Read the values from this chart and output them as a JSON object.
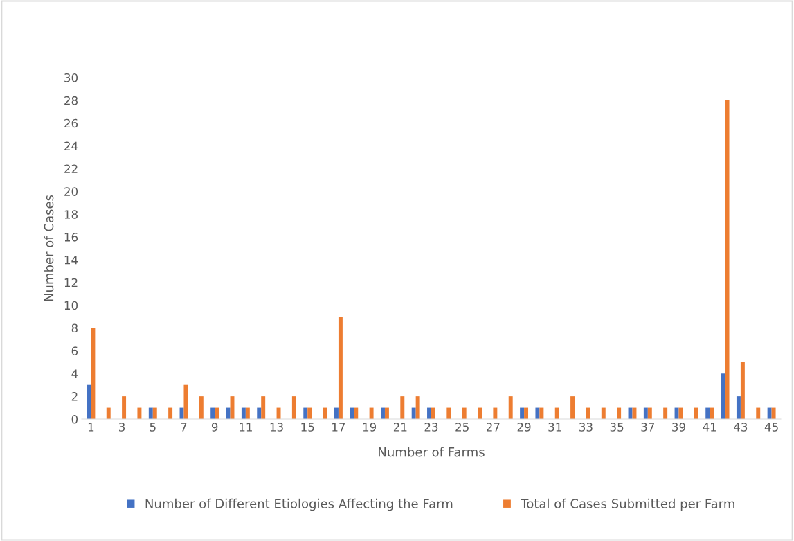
{
  "chart_data": {
    "type": "bar",
    "xlabel": "Number of Farms",
    "ylabel": "Number of Cases",
    "categories": [
      "1",
      null,
      "3",
      null,
      "5",
      null,
      "7",
      null,
      "9",
      null,
      "11",
      null,
      "13",
      null,
      "15",
      null,
      "17",
      null,
      "19",
      null,
      "21",
      null,
      "23",
      null,
      "25",
      null,
      "27",
      null,
      "29",
      null,
      "31",
      null,
      "33",
      null,
      "35",
      null,
      "37",
      null,
      "39",
      null,
      "41",
      null,
      "43",
      null,
      "45"
    ],
    "series": [
      {
        "name": "Number of Different Etiologies Affecting the Farm",
        "color": "#4472c4",
        "values": [
          3,
          null,
          null,
          null,
          1,
          null,
          1,
          null,
          1,
          1,
          1,
          1,
          null,
          null,
          1,
          null,
          1,
          1,
          null,
          1,
          null,
          1,
          1,
          null,
          null,
          null,
          null,
          null,
          1,
          1,
          null,
          null,
          null,
          null,
          null,
          1,
          1,
          null,
          1,
          null,
          1,
          4,
          2,
          null,
          1
        ]
      },
      {
        "name": "Total of Cases Submitted per Farm",
        "color": "#ed7d31",
        "values": [
          8,
          1,
          2,
          1,
          1,
          1,
          3,
          2,
          1,
          2,
          1,
          2,
          1,
          2,
          1,
          1,
          9,
          1,
          1,
          1,
          2,
          2,
          1,
          1,
          1,
          1,
          1,
          2,
          1,
          1,
          1,
          2,
          1,
          1,
          1,
          1,
          1,
          1,
          1,
          1,
          1,
          28,
          5,
          1,
          1
        ]
      }
    ],
    "ylim": [
      0,
      30
    ],
    "yticks": [
      0,
      2,
      4,
      6,
      8,
      10,
      12,
      14,
      16,
      18,
      20,
      22,
      24,
      26,
      28,
      30
    ],
    "grid": false,
    "legend": "bottom"
  }
}
